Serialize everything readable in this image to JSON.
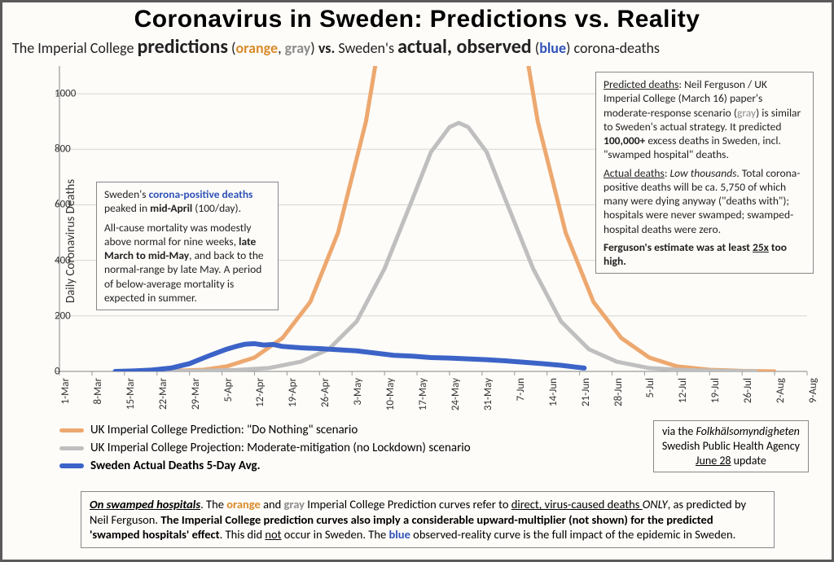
{
  "title": "Coronavirus in Sweden: Predictions vs. Reality",
  "subtitle": {
    "p1": "The Imperial College ",
    "predictions": "predictions",
    "p2": " (",
    "orange_word": "orange",
    "p3": ", ",
    "gray_word": "gray",
    "p4": ") ",
    "vs": "vs.",
    "p5": " Sweden's ",
    "actual": "actual, observed",
    "p6": " (",
    "blue_word": "blue",
    "p7": ") corona-deaths"
  },
  "colors": {
    "orange": "#eda86f",
    "gray": "#bfbfbf",
    "blue": "#3c63c7",
    "axis": "#9a9a9a",
    "grid": "#d9d6cf",
    "text": "#222222",
    "bg": "#fdfcf9",
    "orange_text": "#d98b2b",
    "gray_text": "#8c8c8c",
    "blue_text": "#3053b8"
  },
  "y_axis": {
    "label": "Daily  Coronavirus  Deaths",
    "min": 0,
    "max": 1100,
    "ticks": [
      0,
      200,
      400,
      600,
      800,
      1000
    ]
  },
  "x_axis": {
    "start_index": 0,
    "ticks": [
      "1-Mar",
      "8-Mar",
      "15-Mar",
      "22-Mar",
      "29-Mar",
      "5-Apr",
      "12-Apr",
      "19-Apr",
      "26-Apr",
      "3-May",
      "10-May",
      "17-May",
      "24-May",
      "31-May",
      "7-Jun",
      "14-Jun",
      "21-Jun",
      "28-Jun",
      "5-Jul",
      "12-Jul",
      "19-Jul",
      "26-Jul",
      "2-Aug",
      "9-Aug"
    ]
  },
  "series": {
    "orange": {
      "label": "UK Imperial College Prediction: \"Do Nothing\" scenario",
      "line_width": 5,
      "points": [
        [
          17,
          0
        ],
        [
          24,
          2
        ],
        [
          31,
          6
        ],
        [
          36,
          18
        ],
        [
          42,
          50
        ],
        [
          48,
          120
        ],
        [
          54,
          250
        ],
        [
          60,
          500
        ],
        [
          66,
          900
        ],
        [
          70,
          1300
        ],
        [
          73,
          1600
        ],
        [
          95,
          1600
        ],
        [
          99,
          1300
        ],
        [
          103,
          900
        ],
        [
          109,
          500
        ],
        [
          115,
          250
        ],
        [
          121,
          120
        ],
        [
          127,
          50
        ],
        [
          133,
          18
        ],
        [
          140,
          6
        ],
        [
          147,
          2
        ],
        [
          154,
          0
        ]
      ]
    },
    "gray": {
      "label": "UK Imperial College Projection: Moderate-mitigation (no Lockdown) scenario",
      "line_width": 5,
      "points": [
        [
          20,
          0
        ],
        [
          30,
          2
        ],
        [
          38,
          5
        ],
        [
          45,
          12
        ],
        [
          52,
          35
        ],
        [
          58,
          80
        ],
        [
          64,
          180
        ],
        [
          70,
          370
        ],
        [
          76,
          620
        ],
        [
          80,
          790
        ],
        [
          84,
          880
        ],
        [
          86,
          895
        ],
        [
          88,
          880
        ],
        [
          92,
          790
        ],
        [
          96,
          620
        ],
        [
          102,
          370
        ],
        [
          108,
          180
        ],
        [
          114,
          80
        ],
        [
          120,
          35
        ],
        [
          127,
          12
        ],
        [
          134,
          5
        ],
        [
          142,
          2
        ],
        [
          150,
          0
        ]
      ]
    },
    "blue": {
      "label": "Sweden Actual Deaths 5-Day Avg.",
      "line_width": 6,
      "points": [
        [
          12,
          0
        ],
        [
          16,
          2
        ],
        [
          20,
          5
        ],
        [
          24,
          12
        ],
        [
          28,
          28
        ],
        [
          32,
          55
        ],
        [
          36,
          80
        ],
        [
          38,
          90
        ],
        [
          40,
          98
        ],
        [
          42,
          100
        ],
        [
          44,
          95
        ],
        [
          46,
          97
        ],
        [
          48,
          90
        ],
        [
          52,
          85
        ],
        [
          56,
          82
        ],
        [
          60,
          78
        ],
        [
          64,
          74
        ],
        [
          68,
          66
        ],
        [
          72,
          58
        ],
        [
          76,
          55
        ],
        [
          80,
          50
        ],
        [
          84,
          48
        ],
        [
          88,
          45
        ],
        [
          92,
          42
        ],
        [
          96,
          38
        ],
        [
          100,
          33
        ],
        [
          104,
          28
        ],
        [
          108,
          22
        ],
        [
          111,
          16
        ],
        [
          113,
          12
        ]
      ]
    }
  },
  "plot": {
    "width_days": 161,
    "inner_x": 32,
    "inner_w": 918,
    "inner_h": 375
  },
  "legend": {
    "l1": "UK Imperial College Prediction: \"Do Nothing\" scenario",
    "l2": "UK Imperial College Projection: Moderate-mitigation (no Lockdown) scenario",
    "l3": "Sweden Actual Deaths 5-Day Avg."
  },
  "annot_left": {
    "a": "Sweden's ",
    "b": "corona-positive deaths",
    "c": " peaked in ",
    "d": "mid-April",
    "e": " (100/day).",
    "f": "All-cause mortality was modestly above normal for nine weeks, ",
    "g": "late March to mid-May",
    "h": ", and back to the normal-range by late May. A period of below-average mortality is expected in summer."
  },
  "annot_right": {
    "a": "Predicted deaths",
    "b": ": Neil Ferguson / UK Imperial College (March 16) paper's moderate-response scenario (",
    "c": "gray",
    "d": ") is similar to Sweden's actual strategy. It predicted ",
    "e": "100,000+",
    "f": " excess deaths in Sweden, incl. \"swamped hospital\" deaths.",
    "g": "Actual deaths",
    "h": "Low thousands",
    "i": ". Total corona-positive deaths will be ca. 5,750 of which many were dying anyway (\"deaths with\"); hospitals were never swamped; swamped-hospital deaths were zero.",
    "j": "Ferguson's estimate was at least ",
    "k": "25x",
    "l": " too high."
  },
  "source": {
    "a": "via the ",
    "b": "Folkhälsomyndigheten",
    "c": "Swedish Public Health Agency",
    "d": "June 28",
    "e": " update"
  },
  "footer": {
    "a": "On swamped hospitals",
    "b": ". The ",
    "c": "orange",
    "d": " and ",
    "e": "gray",
    "f": " Imperial College Prediction curves refer to ",
    "g": "direct, virus-caused deaths ",
    "h": "ONLY",
    "i": ", as predicted by Neil Ferguson. ",
    "j": "The Imperial College prediction curves also imply a considerable upward-multiplier (not shown) for the predicted 'swamped hospitals' effect",
    "k": ". This did ",
    "l": "not",
    "m": " occur in Sweden. The ",
    "n": "blue",
    "o": " observed-reality curve is the full impact of the epidemic in Sweden."
  }
}
